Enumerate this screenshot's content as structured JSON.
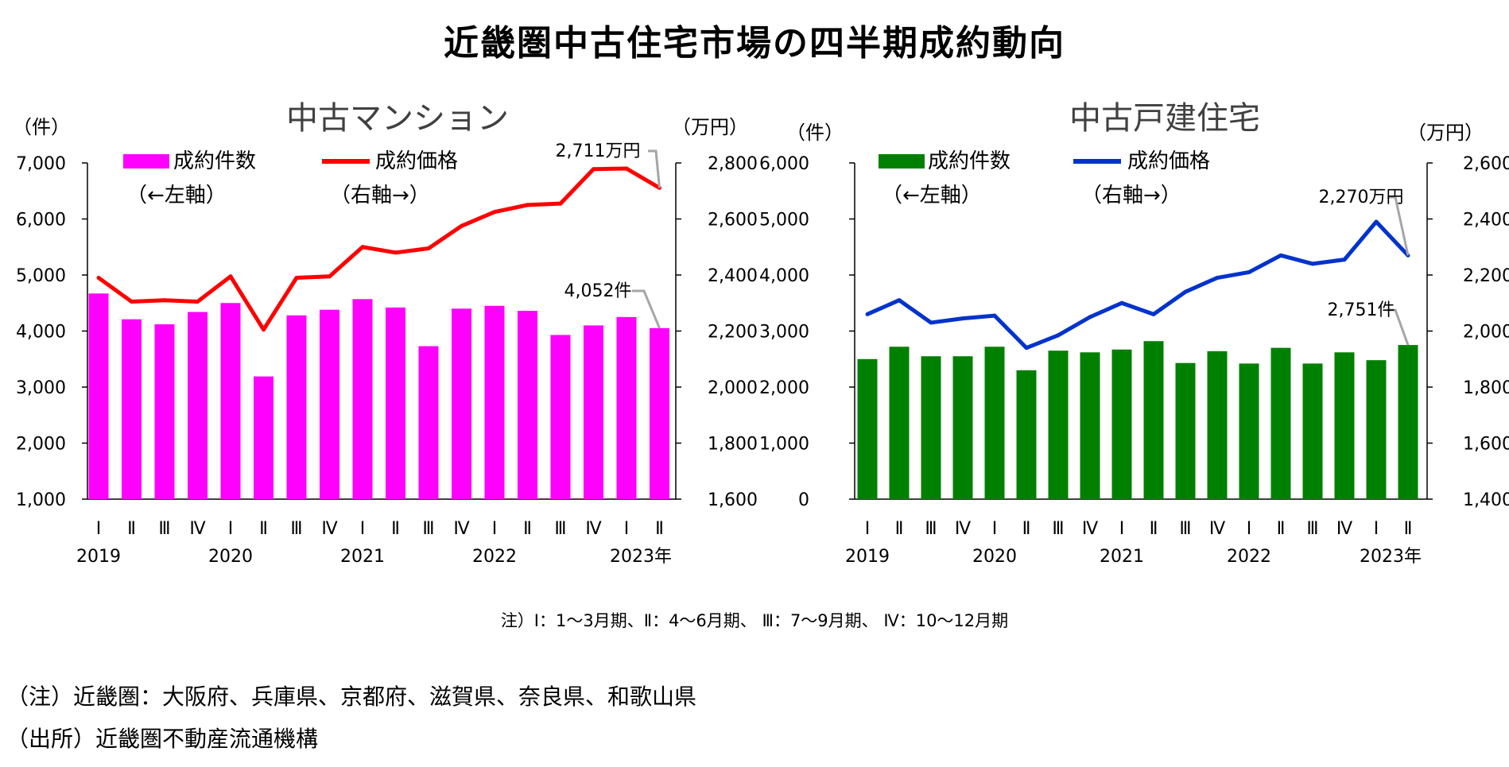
{
  "title": "近畿圏中古住宅市場の四半期成約動向",
  "quarter_note": "注）Ⅰ：1～3月期、Ⅱ：4～6月期、 Ⅲ：7～9月期、 Ⅳ：10～12月期",
  "footnotes": {
    "region": "（注）近畿圏：大阪府、兵庫県、京都府、滋賀県、奈良県、和歌山県",
    "source": "（出所）近畿圏不動産流通機構"
  },
  "colors": {
    "condo_bar": "#ff00ff",
    "condo_line": "#ff0000",
    "house_bar": "#008000",
    "house_line": "#0033cc",
    "callout": "#a6a6a6",
    "chart_title": "#404040"
  },
  "chart_data": [
    {
      "type": "bar",
      "title": "中古マンション",
      "left_unit": "（件）",
      "right_unit": "（万円）",
      "categories": [
        "Ⅰ",
        "Ⅱ",
        "Ⅲ",
        "Ⅳ",
        "Ⅰ",
        "Ⅱ",
        "Ⅲ",
        "Ⅳ",
        "Ⅰ",
        "Ⅱ",
        "Ⅲ",
        "Ⅳ",
        "Ⅰ",
        "Ⅱ",
        "Ⅲ",
        "Ⅳ",
        "Ⅰ",
        "Ⅱ"
      ],
      "year_labels": [
        {
          "index": 0,
          "label": "2019"
        },
        {
          "index": 4,
          "label": "2020"
        },
        {
          "index": 8,
          "label": "2021"
        },
        {
          "index": 12,
          "label": "2022"
        },
        {
          "index": 16,
          "label": "2023年"
        }
      ],
      "series": [
        {
          "name": "成約件数",
          "axis": "left",
          "values": [
            4670,
            4210,
            4120,
            4340,
            4500,
            3190,
            4280,
            4380,
            4570,
            4420,
            3730,
            4400,
            4450,
            4360,
            3930,
            4100,
            4250,
            4052
          ]
        },
        {
          "name": "成約価格",
          "axis": "right",
          "values": [
            2390,
            2305,
            2310,
            2305,
            2395,
            2205,
            2390,
            2395,
            2500,
            2480,
            2495,
            2575,
            2625,
            2650,
            2655,
            2778,
            2780,
            2711
          ]
        }
      ],
      "legend": {
        "bar_label": "成約件数",
        "bar_sub": "（←左軸）",
        "line_label": "成約価格",
        "line_sub": "（右軸→）"
      },
      "left_axis": {
        "min": 1000,
        "max": 7000,
        "step": 1000,
        "ticks": [
          "1,000",
          "2,000",
          "3,000",
          "4,000",
          "5,000",
          "6,000",
          "7,000"
        ]
      },
      "right_axis": {
        "min": 1600,
        "max": 2800,
        "step": 200,
        "ticks": [
          "1,600",
          "1,800",
          "2,000",
          "2,200",
          "2,400",
          "2,600",
          "2,800"
        ]
      },
      "callouts": {
        "line": "2,711万円",
        "bar": "4,052件"
      }
    },
    {
      "type": "bar",
      "title": "中古戸建住宅",
      "left_unit": "（件）",
      "right_unit": "（万円）",
      "categories": [
        "Ⅰ",
        "Ⅱ",
        "Ⅲ",
        "Ⅳ",
        "Ⅰ",
        "Ⅱ",
        "Ⅲ",
        "Ⅳ",
        "Ⅰ",
        "Ⅱ",
        "Ⅲ",
        "Ⅳ",
        "Ⅰ",
        "Ⅱ",
        "Ⅲ",
        "Ⅳ",
        "Ⅰ",
        "Ⅱ"
      ],
      "year_labels": [
        {
          "index": 0,
          "label": "2019"
        },
        {
          "index": 4,
          "label": "2020"
        },
        {
          "index": 8,
          "label": "2021"
        },
        {
          "index": 12,
          "label": "2022"
        },
        {
          "index": 16,
          "label": "2023年"
        }
      ],
      "series": [
        {
          "name": "成約件数",
          "axis": "left",
          "values": [
            2500,
            2720,
            2550,
            2550,
            2720,
            2300,
            2650,
            2620,
            2670,
            2820,
            2430,
            2640,
            2420,
            2700,
            2420,
            2620,
            2480,
            2751
          ]
        },
        {
          "name": "成約価格",
          "axis": "right",
          "values": [
            2060,
            2110,
            2030,
            2045,
            2055,
            1940,
            1985,
            2050,
            2100,
            2060,
            2140,
            2190,
            2210,
            2270,
            2240,
            2255,
            2390,
            2270
          ]
        }
      ],
      "legend": {
        "bar_label": "成約件数",
        "bar_sub": "（←左軸）",
        "line_label": "成約価格",
        "line_sub": "（右軸→）"
      },
      "left_axis": {
        "min": 0,
        "max": 6000,
        "step": 1000,
        "ticks": [
          "0",
          "1,000",
          "2,000",
          "3,000",
          "4,000",
          "5,000",
          "6,000"
        ]
      },
      "right_axis": {
        "min": 1400,
        "max": 2600,
        "step": 200,
        "ticks": [
          "1,400",
          "1,600",
          "1,800",
          "2,000",
          "2,200",
          "2,400",
          "2,600"
        ]
      },
      "callouts": {
        "line": "2,270万円",
        "bar": "2,751件"
      }
    }
  ]
}
